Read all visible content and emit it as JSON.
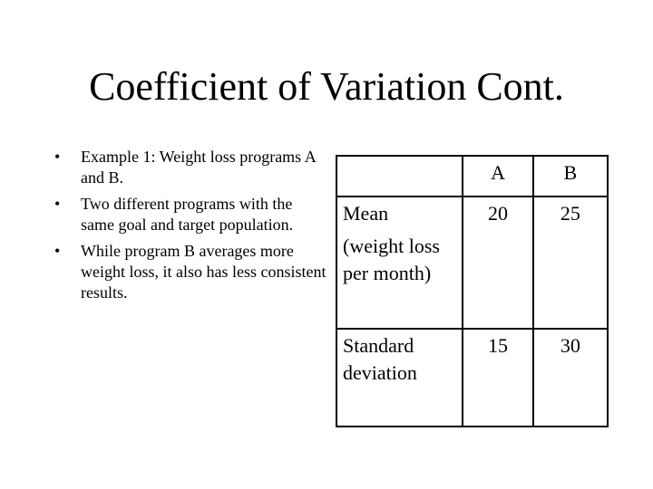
{
  "slide": {
    "title": "Coefficient of Variation Cont.",
    "bullet_symbol": "•",
    "bullets": [
      "Example 1: Weight loss programs A and B.",
      "Two different programs with the same goal and target population.",
      "While program B averages more weight loss, it also has less consistent results."
    ]
  },
  "table": {
    "header": {
      "blank": "",
      "col_a": "A",
      "col_b": "B"
    },
    "rows": [
      {
        "label_line1": "Mean",
        "label_line2": "(weight loss per month)",
        "a": "20",
        "b": "25"
      },
      {
        "label_line1": "Standard deviation",
        "a": "15",
        "b": "30"
      }
    ]
  }
}
